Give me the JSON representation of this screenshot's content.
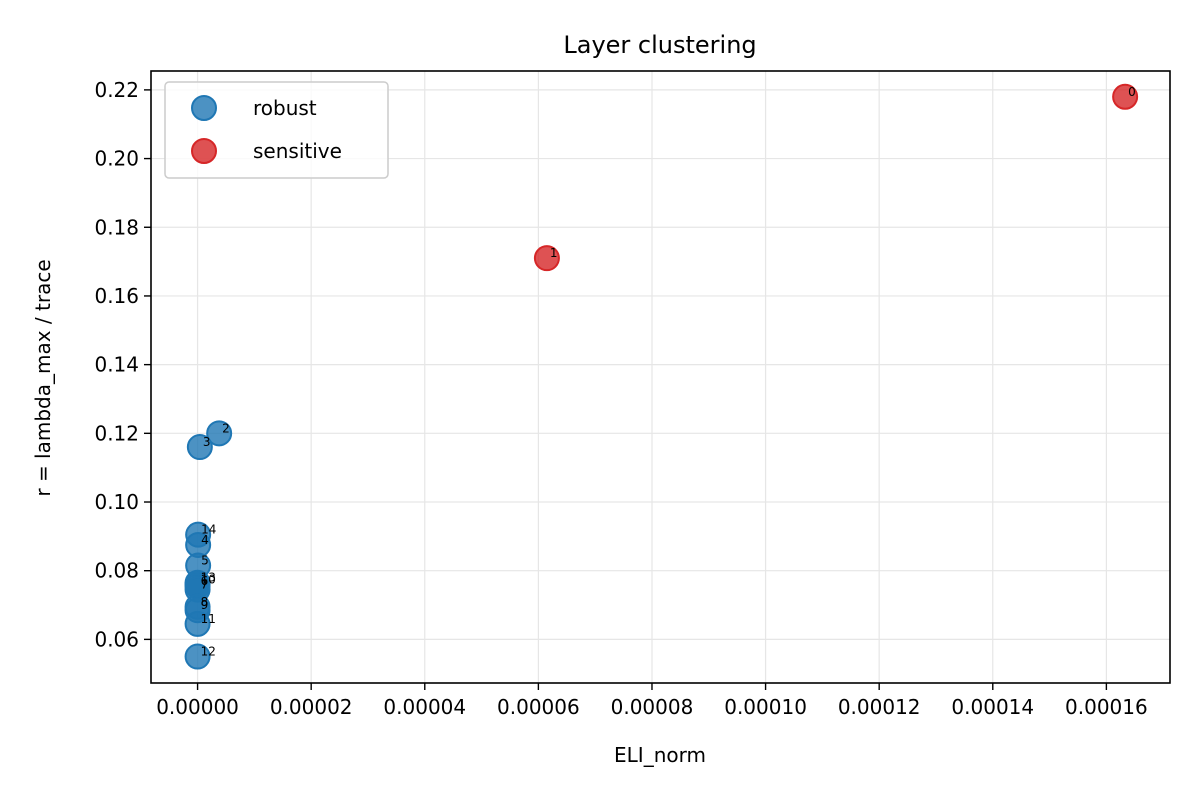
{
  "chart_data": {
    "type": "scatter",
    "title": "Layer clustering",
    "xlabel": "ELI_norm",
    "ylabel": "r = lambda_max / trace",
    "xlim": [
      -8.2e-06,
      0.0001712
    ],
    "ylim": [
      0.0473,
      0.2255
    ],
    "x_ticks": [
      0,
      2e-05,
      4e-05,
      6e-05,
      8e-05,
      0.0001,
      0.00012,
      0.00014,
      0.00016
    ],
    "x_tick_labels": [
      "0.00000",
      "0.00002",
      "0.00004",
      "0.00006",
      "0.00008",
      "0.00010",
      "0.00012",
      "0.00014",
      "0.00016"
    ],
    "y_ticks": [
      0.06,
      0.08,
      0.1,
      0.12,
      0.14,
      0.16,
      0.18,
      0.2,
      0.22
    ],
    "y_tick_labels": [
      "0.06",
      "0.08",
      "0.10",
      "0.12",
      "0.14",
      "0.16",
      "0.18",
      "0.20",
      "0.22"
    ],
    "grid": true,
    "legend_position": "top-left",
    "series": [
      {
        "name": "robust",
        "color": "#1f77b4",
        "points": [
          {
            "label": "2",
            "x": 3.8e-06,
            "y": 0.12
          },
          {
            "label": "3",
            "x": 4e-07,
            "y": 0.116
          },
          {
            "label": "14",
            "x": 1e-07,
            "y": 0.0905
          },
          {
            "label": "4",
            "x": 1e-07,
            "y": 0.0875
          },
          {
            "label": "5",
            "x": 1e-07,
            "y": 0.0815
          },
          {
            "label": "13",
            "x": 0.0,
            "y": 0.0765
          },
          {
            "label": "10",
            "x": 0.0,
            "y": 0.076
          },
          {
            "label": "6",
            "x": 0.0,
            "y": 0.0755
          },
          {
            "label": "7",
            "x": 0.0,
            "y": 0.0745
          },
          {
            "label": "8",
            "x": 0.0,
            "y": 0.0695
          },
          {
            "label": "9",
            "x": 0.0,
            "y": 0.0685
          },
          {
            "label": "11",
            "x": 0.0,
            "y": 0.0645
          },
          {
            "label": "12",
            "x": 0.0,
            "y": 0.055
          }
        ]
      },
      {
        "name": "sensitive",
        "color": "#d62728",
        "points": [
          {
            "label": "1",
            "x": 6.15e-05,
            "y": 0.171
          },
          {
            "label": "0",
            "x": 0.0001633,
            "y": 0.218
          }
        ]
      }
    ]
  }
}
